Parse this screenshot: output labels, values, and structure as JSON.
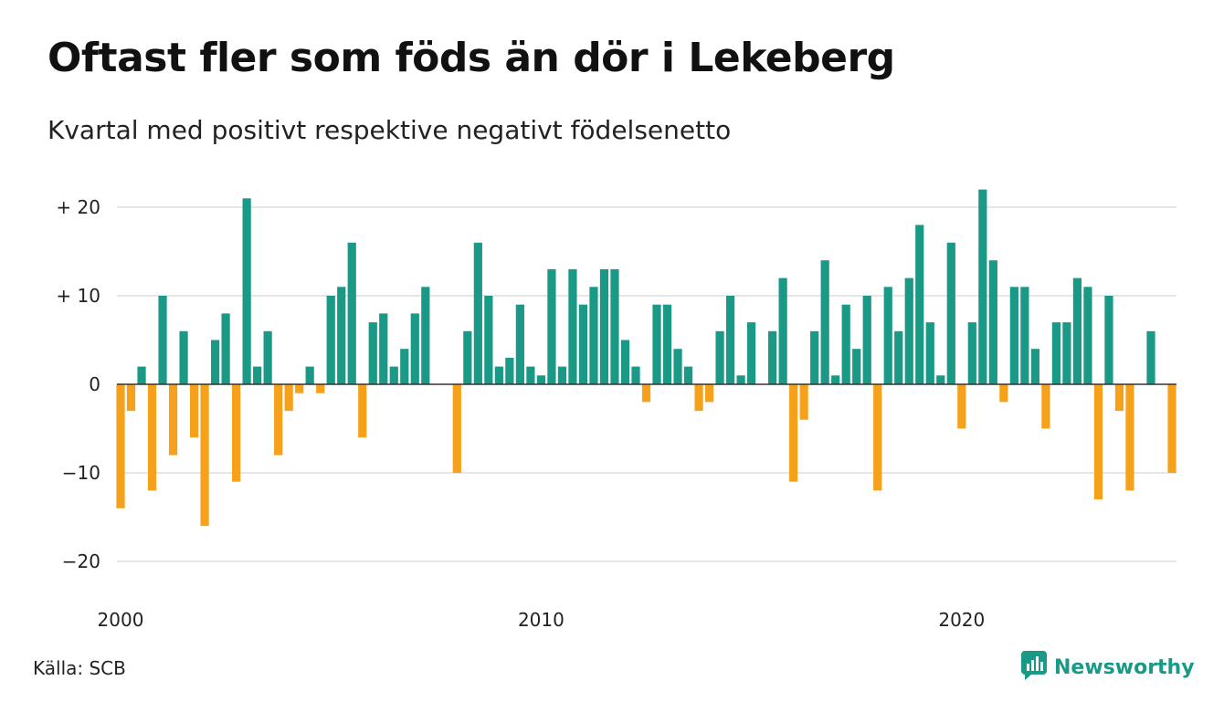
{
  "header": {
    "title": "Oftast fler som föds än dör i Lekeberg",
    "subtitle": "Kvartal med positivt respektive negativt födelsenetto"
  },
  "footer": {
    "source": "Källa: SCB",
    "brand": "Newsworthy",
    "brand_icon": "newsworthy-logo-icon"
  },
  "colors": {
    "positive": "#1a9a86",
    "negative": "#f5a11c",
    "grid": "#dddddd",
    "zero_line": "#333333",
    "brand": "#1a9a86"
  },
  "chart_data": {
    "type": "bar",
    "ylim": [
      -24,
      24
    ],
    "yticks": [
      20,
      10,
      0,
      -10,
      -20
    ],
    "ytick_labels": [
      "+ 20",
      "+ 10",
      "0",
      "−10",
      "−20"
    ],
    "xtick_labels": [
      "2000",
      "2010",
      "2020"
    ],
    "xticks_quarter_index": [
      0,
      40,
      80
    ],
    "grid": true,
    "legend": "none",
    "categories": [
      "2000 Q1",
      "2000 Q2",
      "2000 Q3",
      "2000 Q4",
      "2001 Q1",
      "2001 Q2",
      "2001 Q3",
      "2001 Q4",
      "2002 Q1",
      "2002 Q2",
      "2002 Q3",
      "2002 Q4",
      "2003 Q1",
      "2003 Q2",
      "2003 Q3",
      "2003 Q4",
      "2004 Q1",
      "2004 Q2",
      "2004 Q3",
      "2004 Q4",
      "2005 Q1",
      "2005 Q2",
      "2005 Q3",
      "2005 Q4",
      "2006 Q1",
      "2006 Q2",
      "2006 Q3",
      "2006 Q4",
      "2007 Q1",
      "2007 Q2",
      "2007 Q3",
      "2007 Q4",
      "2008 Q1",
      "2008 Q2",
      "2008 Q3",
      "2008 Q4",
      "2009 Q1",
      "2009 Q2",
      "2009 Q3",
      "2009 Q4",
      "2010 Q1",
      "2010 Q2",
      "2010 Q3",
      "2010 Q4",
      "2011 Q1",
      "2011 Q2",
      "2011 Q3",
      "2011 Q4",
      "2012 Q1",
      "2012 Q2",
      "2012 Q3",
      "2012 Q4",
      "2013 Q1",
      "2013 Q2",
      "2013 Q3",
      "2013 Q4",
      "2014 Q1",
      "2014 Q2",
      "2014 Q3",
      "2014 Q4",
      "2015 Q1",
      "2015 Q2",
      "2015 Q3",
      "2015 Q4",
      "2016 Q1",
      "2016 Q2",
      "2016 Q3",
      "2016 Q4",
      "2017 Q1",
      "2017 Q2",
      "2017 Q3",
      "2017 Q4",
      "2018 Q1",
      "2018 Q2",
      "2018 Q3",
      "2018 Q4",
      "2019 Q1",
      "2019 Q2",
      "2019 Q3",
      "2019 Q4",
      "2020 Q1",
      "2020 Q2",
      "2020 Q3",
      "2020 Q4",
      "2021 Q1",
      "2021 Q2",
      "2021 Q3",
      "2021 Q4",
      "2022 Q1",
      "2022 Q2",
      "2022 Q3",
      "2022 Q4",
      "2023 Q1",
      "2023 Q2",
      "2023 Q3",
      "2023 Q4",
      "2024 Q1",
      "2024 Q2",
      "2024 Q3",
      "2024 Q4",
      "2025 Q1"
    ],
    "values": [
      -14,
      -3,
      2,
      -12,
      10,
      -8,
      6,
      -6,
      -16,
      5,
      8,
      -11,
      21,
      2,
      6,
      -8,
      -3,
      -1,
      2,
      -1,
      10,
      11,
      16,
      -6,
      7,
      8,
      2,
      4,
      8,
      11,
      0,
      0,
      -10,
      6,
      16,
      10,
      2,
      3,
      9,
      2,
      1,
      13,
      2,
      13,
      9,
      11,
      13,
      13,
      5,
      2,
      -2,
      9,
      9,
      4,
      2,
      -3,
      -2,
      6,
      10,
      1,
      7,
      0,
      6,
      12,
      -11,
      -4,
      6,
      14,
      1,
      9,
      4,
      10,
      -12,
      11,
      6,
      12,
      18,
      7,
      1,
      16,
      -5,
      7,
      22,
      14,
      -2,
      11,
      11,
      4,
      -5,
      7,
      7,
      12,
      11,
      -13,
      10,
      -3,
      -12,
      0,
      6,
      0,
      -10
    ]
  }
}
